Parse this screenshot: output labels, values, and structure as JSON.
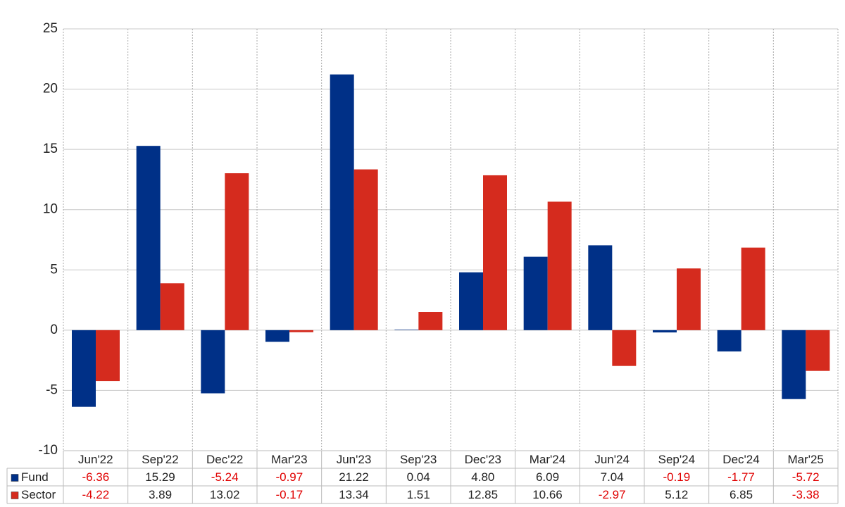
{
  "chart_data": {
    "type": "bar",
    "categories": [
      "Jun'22",
      "Sep'22",
      "Dec'22",
      "Mar'23",
      "Jun'23",
      "Sep'23",
      "Dec'23",
      "Mar'24",
      "Jun'24",
      "Sep'24",
      "Dec'24",
      "Mar'25"
    ],
    "series": [
      {
        "name": "Fund",
        "color": "#003087",
        "values": [
          -6.36,
          15.29,
          -5.24,
          -0.97,
          21.22,
          0.04,
          4.8,
          6.09,
          7.04,
          -0.19,
          -1.77,
          -5.72
        ],
        "value_labels": [
          "-6.36",
          "15.29",
          "-5.24",
          "-0.97",
          "21.22",
          "0.04",
          "4.80",
          "6.09",
          "7.04",
          "-0.19",
          "-1.77",
          "-5.72"
        ]
      },
      {
        "name": "Sector",
        "color": "#d52b1e",
        "values": [
          -4.22,
          3.89,
          13.02,
          -0.17,
          13.34,
          1.51,
          12.85,
          10.66,
          -2.97,
          5.12,
          6.85,
          -3.38
        ],
        "value_labels": [
          "-4.22",
          "3.89",
          "13.02",
          "-0.17",
          "13.34",
          "1.51",
          "12.85",
          "10.66",
          "-2.97",
          "5.12",
          "6.85",
          "-3.38"
        ]
      }
    ],
    "ylim": [
      -10,
      25
    ],
    "yticks": [
      -10,
      -5,
      0,
      5,
      10,
      15,
      20,
      25
    ],
    "grid": true,
    "negative_label_color": "#e00000"
  }
}
